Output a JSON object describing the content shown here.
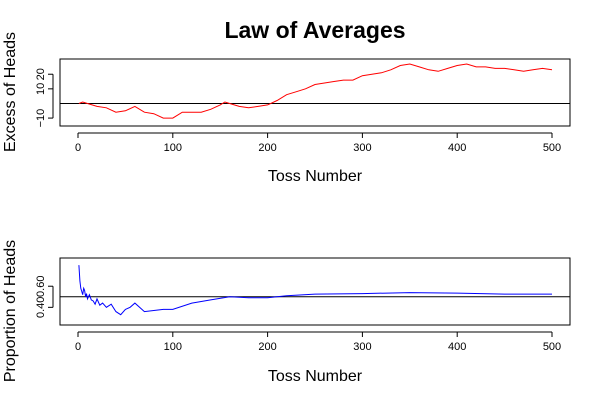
{
  "title": "Law of Averages",
  "colors": {
    "excess_series": "#ff0000",
    "proportion_series": "#0000ff",
    "reference_line": "#000000"
  },
  "chart_data": [
    {
      "type": "line",
      "title": "Law of Averages",
      "xlabel": "Toss Number",
      "ylabel": "Excess of Heads",
      "xlim": [
        0,
        500
      ],
      "ylim": [
        -12,
        27
      ],
      "x_ticks": [
        0,
        100,
        200,
        300,
        400,
        500
      ],
      "y_ticks": [
        -10,
        10,
        20
      ],
      "x_tick_labels": [
        "0",
        "100",
        "200",
        "300",
        "400",
        "500"
      ],
      "y_tick_labels": [
        "−10",
        "10",
        "20"
      ],
      "reference_line": 0,
      "grid": false,
      "series": [
        {
          "color": "#ff0000",
          "x": [
            1,
            5,
            10,
            20,
            30,
            40,
            50,
            60,
            70,
            80,
            90,
            100,
            110,
            120,
            130,
            140,
            150,
            155,
            160,
            170,
            180,
            190,
            200,
            210,
            220,
            230,
            240,
            250,
            260,
            270,
            280,
            290,
            300,
            310,
            320,
            330,
            340,
            350,
            360,
            370,
            380,
            390,
            400,
            410,
            420,
            430,
            440,
            450,
            460,
            470,
            480,
            490,
            500
          ],
          "y": [
            0,
            1,
            0,
            -2,
            -3,
            -6,
            -5,
            -2,
            -6,
            -7,
            -10,
            -10,
            -6,
            -6,
            -6,
            -4,
            -1,
            1,
            0,
            -2,
            -3,
            -2,
            -1,
            2,
            6,
            8,
            10,
            13,
            14,
            15,
            16,
            16,
            19,
            20,
            21,
            23,
            26,
            27,
            25,
            23,
            22,
            24,
            26,
            27,
            25,
            25,
            24,
            24,
            23,
            22,
            23,
            24,
            23
          ]
        }
      ]
    },
    {
      "type": "line",
      "xlabel": "Toss Number",
      "ylabel": "Proportion of Heads",
      "xlim": [
        0,
        500
      ],
      "ylim": [
        0.28,
        0.82
      ],
      "x_ticks": [
        0,
        100,
        200,
        300,
        400,
        500
      ],
      "y_ticks": [
        0.4,
        0.6
      ],
      "x_tick_labels": [
        "0",
        "100",
        "200",
        "300",
        "400",
        "500"
      ],
      "y_tick_labels": [
        "0.40",
        "0.60"
      ],
      "reference_line": 0.5,
      "grid": false,
      "series": [
        {
          "color": "#0000ff",
          "x": [
            1,
            2,
            3,
            4,
            5,
            6,
            7,
            8,
            9,
            10,
            12,
            14,
            16,
            18,
            20,
            23,
            26,
            30,
            35,
            40,
            45,
            50,
            55,
            60,
            70,
            80,
            90,
            100,
            120,
            140,
            160,
            180,
            200,
            220,
            250,
            300,
            350,
            400,
            450,
            500
          ],
          "y": [
            0.8,
            0.65,
            0.58,
            0.55,
            0.52,
            0.58,
            0.56,
            0.5,
            0.53,
            0.48,
            0.52,
            0.47,
            0.46,
            0.43,
            0.48,
            0.42,
            0.44,
            0.4,
            0.43,
            0.36,
            0.33,
            0.38,
            0.4,
            0.44,
            0.36,
            0.37,
            0.38,
            0.38,
            0.44,
            0.47,
            0.5,
            0.49,
            0.49,
            0.51,
            0.525,
            0.53,
            0.54,
            0.535,
            0.525,
            0.525
          ]
        }
      ]
    }
  ]
}
